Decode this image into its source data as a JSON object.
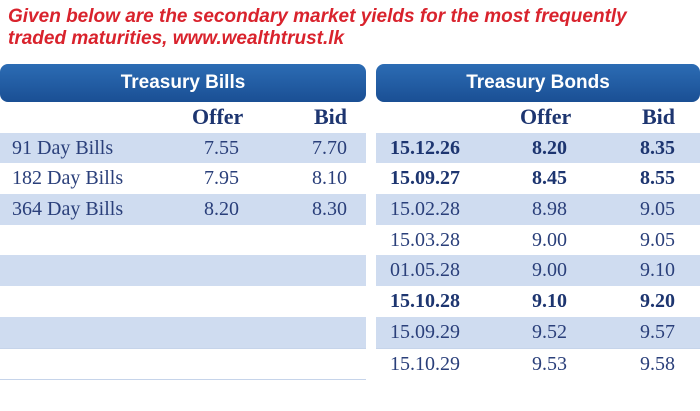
{
  "caption": "Given below are the secondary market yields for the most frequently traded maturities, www.wealthtrust.lk",
  "bills": {
    "title": "Treasury Bills",
    "headers": {
      "offer": "Offer",
      "bid": "Bid"
    },
    "rows": [
      {
        "name": "91 Day Bills",
        "offer": "7.55",
        "bid": "7.70"
      },
      {
        "name": "182 Day Bills",
        "offer": "7.95",
        "bid": "8.10"
      },
      {
        "name": "364 Day Bills",
        "offer": "8.20",
        "bid": "8.30"
      }
    ]
  },
  "bonds": {
    "title": "Treasury Bonds",
    "headers": {
      "offer": "Offer",
      "bid": "Bid"
    },
    "rows": [
      {
        "maturity": "15.12.26",
        "offer": "8.20",
        "bid": "8.35"
      },
      {
        "maturity": "15.09.27",
        "offer": "8.45",
        "bid": "8.55"
      },
      {
        "maturity": "15.02.28",
        "offer": "8.98",
        "bid": "9.05"
      },
      {
        "maturity": "15.03.28",
        "offer": "9.00",
        "bid": "9.05"
      },
      {
        "maturity": "01.05.28",
        "offer": "9.00",
        "bid": "9.10"
      },
      {
        "maturity": "15.10.28",
        "offer": "9.10",
        "bid": "9.20"
      },
      {
        "maturity": "15.09.29",
        "offer": "9.52",
        "bid": "9.57"
      },
      {
        "maturity": "15.10.29",
        "offer": "9.53",
        "bid": "9.58"
      }
    ]
  }
}
